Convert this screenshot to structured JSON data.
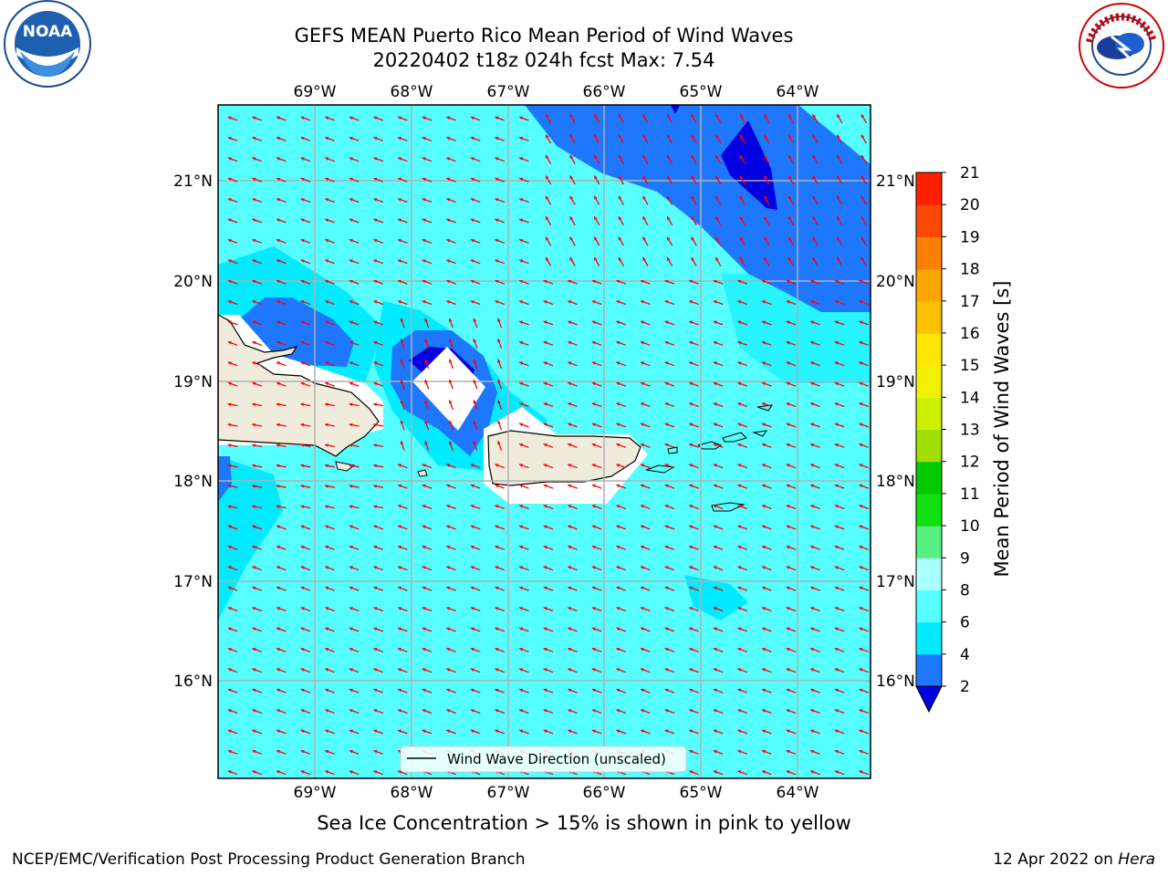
{
  "title": {
    "line1": "GEFS MEAN Puerto Rico Mean Period of Wind Waves",
    "line2": "20220402 t18z 024h fcst   Max: 7.54"
  },
  "map": {
    "lon_labels": [
      "69°W",
      "68°W",
      "67°W",
      "66°W",
      "65°W",
      "64°W"
    ],
    "lat_labels": [
      "21°N",
      "20°N",
      "19°N",
      "18°N",
      "17°N",
      "16°N"
    ],
    "legend_label": "Wind Wave Direction (unscaled)",
    "arrow_color": "#ff0000",
    "land_color": "#efecdc"
  },
  "colorbar": {
    "label": "Mean Period of Wind Waves [s]",
    "ticks": [
      "2",
      "4",
      "6",
      "8",
      "9",
      "10",
      "11",
      "12",
      "13",
      "14",
      "15",
      "16",
      "17",
      "18",
      "19",
      "20",
      "21"
    ],
    "colors": [
      "#0000e0",
      "#1e78ff",
      "#00ebff",
      "#55ffff",
      "#aaffff",
      "#55f080",
      "#10e010",
      "#00c800",
      "#a0dd00",
      "#ccf000",
      "#f0f000",
      "#ffe600",
      "#ffc000",
      "#ffa500",
      "#ff8000",
      "#ff4800",
      "#ff2000",
      "#ff0000"
    ]
  },
  "footnote": "Sea Ice Concentration > 15% is shown in pink to yellow",
  "credit": "NCEP/EMC/Verification Post Processing Product Generation Branch",
  "datestamp": {
    "date": "12 Apr 2022 on ",
    "host": "Hera"
  },
  "logos": {
    "noaa": "NOAA",
    "nws": "NATIONAL WEATHER SERVICE"
  }
}
